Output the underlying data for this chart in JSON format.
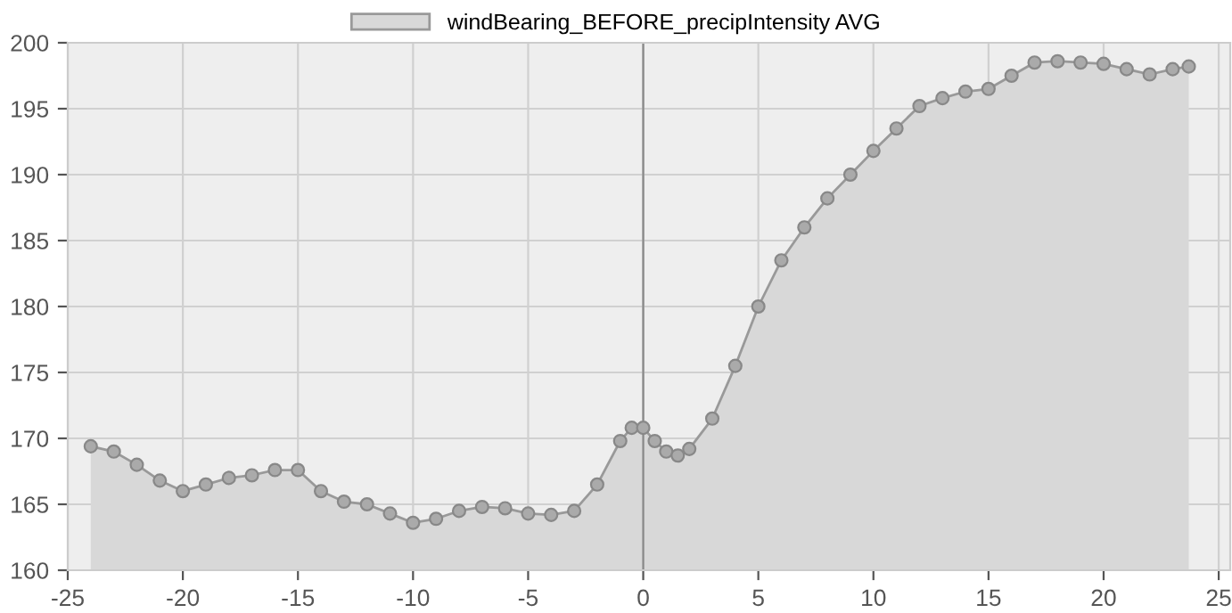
{
  "chart_data": {
    "type": "area",
    "legend": "top",
    "grid": true,
    "marker": "circle",
    "xlim": [
      -25,
      25.5
    ],
    "ylim": [
      160,
      200
    ],
    "xticks": [
      -25,
      -20,
      -15,
      -10,
      -5,
      0,
      5,
      10,
      15,
      20,
      25
    ],
    "yticks": [
      160,
      165,
      170,
      175,
      180,
      185,
      190,
      195,
      200
    ],
    "ref_lines": [
      {
        "axis": "x",
        "value": 0,
        "label": null,
        "color": "#888888"
      }
    ],
    "series": [
      {
        "name": "windBearing_BEFORE_precipIntensity AVG",
        "color": "#999999",
        "x": [
          -24,
          -23,
          -22,
          -21,
          -20,
          -19,
          -18,
          -17,
          -16,
          -15,
          -14,
          -13,
          -12,
          -11,
          -10,
          -9,
          -8,
          -7,
          -6,
          -5,
          -4,
          -3,
          -2,
          -1,
          -0.5,
          0,
          0.5,
          1,
          1.5,
          2,
          3,
          4,
          5,
          6,
          7,
          8,
          9,
          10,
          11,
          12,
          13,
          14,
          15,
          16,
          17,
          18,
          19,
          20,
          21,
          22,
          23,
          23.7
        ],
        "values": [
          169.4,
          169.0,
          168.0,
          166.8,
          166.0,
          166.5,
          167.0,
          167.2,
          167.6,
          167.6,
          166.0,
          165.2,
          165.0,
          164.3,
          163.6,
          163.9,
          164.5,
          164.8,
          164.7,
          164.3,
          164.2,
          164.5,
          166.5,
          169.8,
          170.8,
          170.8,
          169.8,
          169.0,
          168.7,
          169.2,
          171.5,
          175.5,
          180.0,
          183.5,
          186.0,
          188.2,
          190.0,
          191.8,
          193.5,
          195.2,
          195.8,
          196.3,
          196.5,
          197.5,
          198.5,
          198.6,
          198.5,
          198.4,
          198.0,
          197.6,
          198.0,
          198.2
        ]
      }
    ]
  }
}
